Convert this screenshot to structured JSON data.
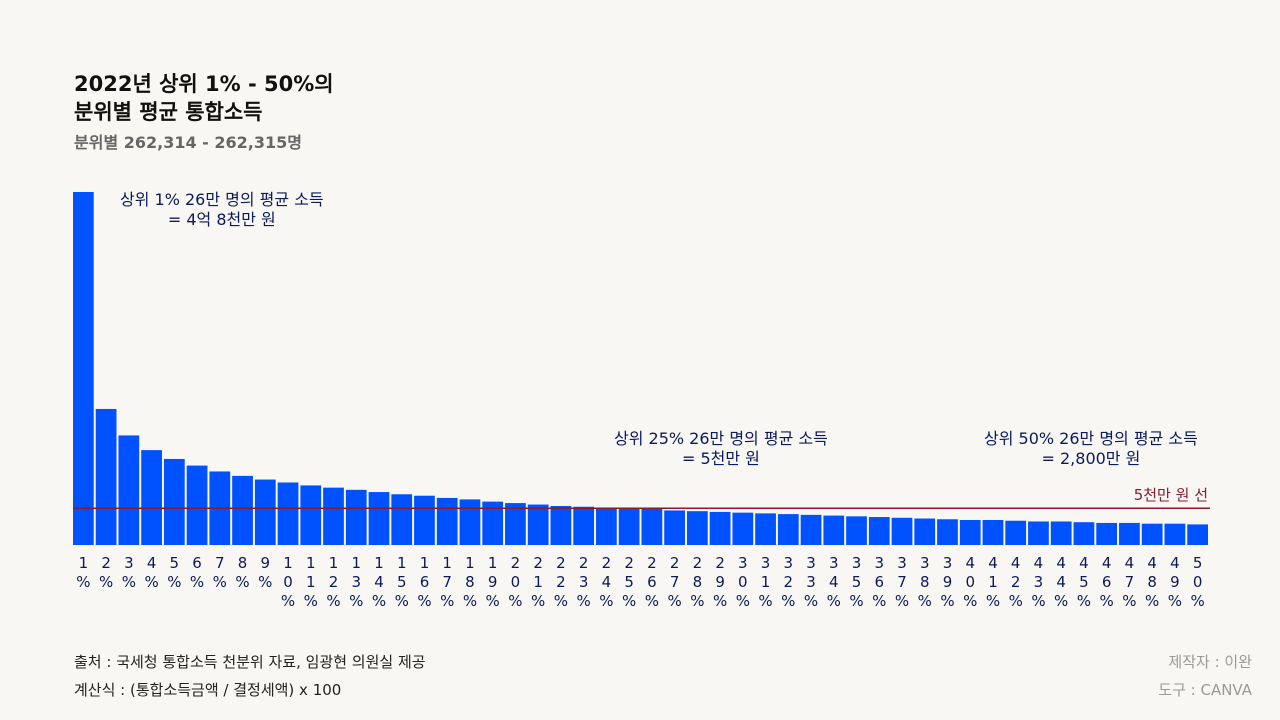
{
  "chart_data": {
    "type": "bar",
    "title": "2022년 상위 1% - 50%의 분위별 평균 통합소득",
    "title_lines": [
      "2022년 상위 1% - 50%의",
      "분위별 평균 통합소득"
    ],
    "subtitle": "분위별 262,314 - 262,315명",
    "categories": [
      "1%",
      "2%",
      "3%",
      "4%",
      "5%",
      "6%",
      "7%",
      "8%",
      "9%",
      "10%",
      "11%",
      "12%",
      "13%",
      "14%",
      "15%",
      "16%",
      "17%",
      "18%",
      "19%",
      "20%",
      "21%",
      "22%",
      "23%",
      "24%",
      "25%",
      "26%",
      "27%",
      "28%",
      "29%",
      "30%",
      "31%",
      "32%",
      "33%",
      "34%",
      "35%",
      "36%",
      "37%",
      "38%",
      "39%",
      "40%",
      "41%",
      "42%",
      "43%",
      "44%",
      "45%",
      "46%",
      "47%",
      "48%",
      "49%",
      "50%"
    ],
    "values": [
      48000,
      18500,
      14900,
      12900,
      11700,
      10800,
      10000,
      9400,
      8900,
      8500,
      8100,
      7800,
      7500,
      7200,
      6900,
      6700,
      6400,
      6200,
      5900,
      5700,
      5500,
      5300,
      5200,
      5000,
      5000,
      4900,
      4700,
      4600,
      4500,
      4400,
      4300,
      4200,
      4100,
      4000,
      3900,
      3800,
      3700,
      3600,
      3500,
      3400,
      3400,
      3300,
      3200,
      3200,
      3100,
      3000,
      3000,
      2900,
      2900,
      2800
    ],
    "unit": "만 원",
    "ylim": [
      0,
      48000
    ],
    "xlabel": "",
    "ylabel": "",
    "bar_color": "#0051ff",
    "reference_line": {
      "value": 5000,
      "label": "5천만 원 선",
      "color": "#8a1a2c"
    },
    "annotations": [
      {
        "category": "1%",
        "lines": [
          "상위 1% 26만 명의 평균 소득",
          "= 4억 8천만 원"
        ]
      },
      {
        "category": "25%",
        "lines": [
          "상위 25% 26만 명의 평균 소득",
          "= 5천만 원"
        ]
      },
      {
        "category": "50%",
        "lines": [
          "상위 50% 26만 명의 평균 소득",
          "= 2,800만 원"
        ]
      }
    ],
    "tick_color": "#0a1a5c"
  },
  "footer": {
    "source": "출처 : 국세청 통합소득 천분위 자료, 임광현 의원실 제공",
    "formula": "계산식 : (통합소득금액 / 결정세액) x 100",
    "author": "제작자 : 이완",
    "tool": "도구 : CANVA"
  }
}
